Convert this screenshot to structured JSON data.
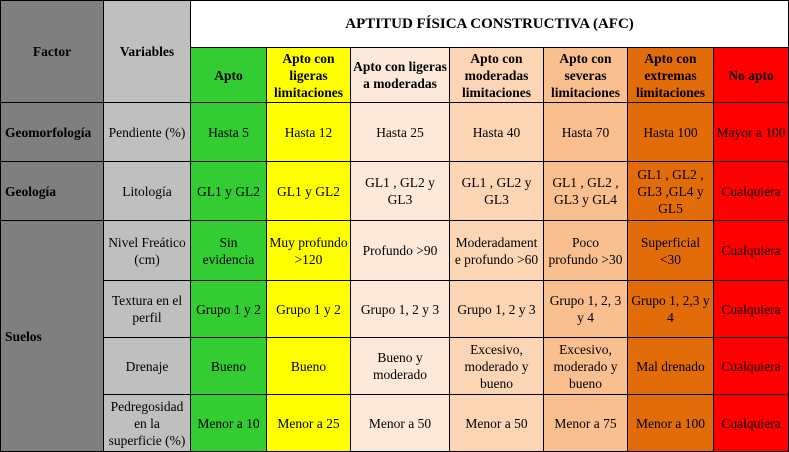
{
  "header": {
    "factor": "Factor",
    "variables": "Variables",
    "title": "APTITUD FÍSICA CONSTRUCTIVA (AFC)",
    "classes": [
      {
        "label": "Apto",
        "color": "#33cc33"
      },
      {
        "label": "Apto con ligeras limitaciones",
        "color": "#ffff00"
      },
      {
        "label": "Apto con ligeras a moderadas",
        "color": "#fde9d9"
      },
      {
        "label": "Apto con moderadas limitaciones",
        "color": "#fcd5b4"
      },
      {
        "label": "Apto con severas limitaciones",
        "color": "#fabf8f"
      },
      {
        "label": "Apto con extremas limitaciones",
        "color": "#e26b0a"
      },
      {
        "label": "No apto",
        "color": "#ff0000"
      }
    ]
  },
  "rows": [
    {
      "factor": "Geomorfología",
      "variable": "Pendiente (%)",
      "cells": [
        "Hasta 5",
        "Hasta 12",
        "Hasta 25",
        "Hasta 40",
        "Hasta 70",
        "Hasta 100",
        "Mayor a 100"
      ]
    },
    {
      "factor": "Geología",
      "variable": "Litología",
      "cells": [
        "GL1 y GL2",
        "GL1 y GL2",
        "GL1 , GL2 y GL3",
        "GL1 , GL2  y GL3",
        "GL1 , GL2 , GL3 y GL4",
        "GL1 , GL2 , GL3 ,GL4 y GL5",
        "Cualquiera"
      ]
    },
    {
      "factor": "Suelos",
      "variable": "Nivel Freático (cm)",
      "cells": [
        "Sin evidencia",
        "Muy profundo >120",
        "Profundo >90",
        "Moderadament e profundo >60",
        "Poco profundo >30",
        "Superficial <30",
        "Cualquiera"
      ]
    },
    {
      "variable": "Textura en el perfil",
      "cells": [
        "Grupo 1 y 2",
        "Grupo 1 y 2",
        "Grupo 1, 2 y 3",
        "Grupo 1, 2 y 3",
        "Grupo 1, 2, 3 y 4",
        "Grupo 1, 2,3 y 4",
        "Cualquiera"
      ]
    },
    {
      "variable": "Drenaje",
      "cells": [
        "Bueno",
        "Bueno",
        "Bueno y moderado",
        "Excesivo, moderado y bueno",
        "Excesivo, moderado y bueno",
        "Mal drenado",
        "Cualquiera"
      ]
    },
    {
      "variable": "Pedregosidad en la superficie (%)",
      "cells": [
        "Menor a  10",
        "Menor a  25",
        "Menor a  50",
        "Menor a  50",
        "Menor a  75",
        "Menor a  100",
        "Cualquiera"
      ]
    }
  ]
}
